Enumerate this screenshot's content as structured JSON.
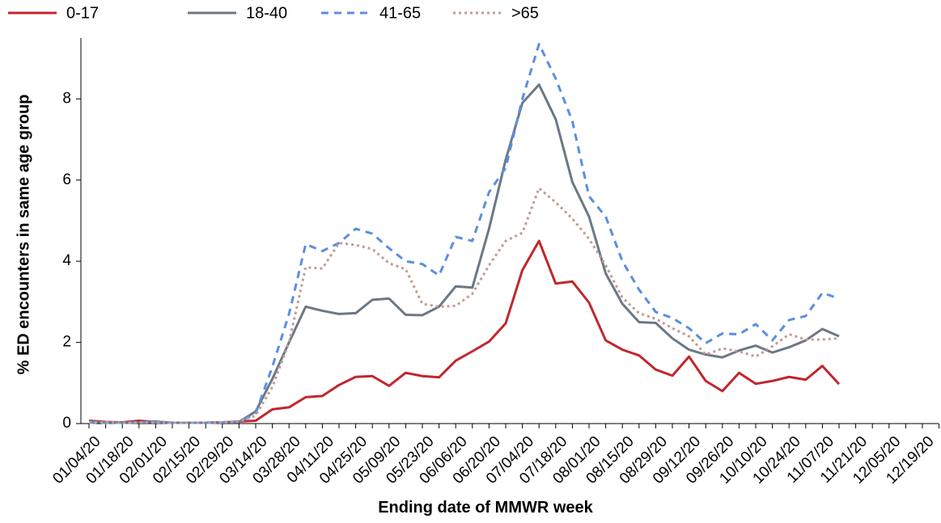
{
  "chart_data": {
    "type": "line",
    "y_label": "% ED encounters in same age group",
    "x_label": "Ending date of MMWR week",
    "categories": [
      "01/04/20",
      null,
      "01/18/20",
      null,
      "02/01/20",
      null,
      "02/15/20",
      null,
      "02/29/20",
      null,
      "03/14/20",
      null,
      "03/28/20",
      null,
      "04/11/20",
      null,
      "04/25/20",
      null,
      "05/09/20",
      null,
      "05/23/20",
      null,
      "06/06/20",
      null,
      "06/20/20",
      null,
      "07/04/20",
      null,
      "07/18/20",
      null,
      "08/01/20",
      null,
      "08/15/20",
      null,
      "08/29/20",
      null,
      "09/12/20",
      null,
      "09/26/20",
      null,
      "10/10/20",
      null,
      "10/24/20",
      null,
      "11/07/20",
      null,
      "11/21/20",
      null,
      "12/05/20",
      null,
      "12/19/20",
      null
    ],
    "series": [
      {
        "name": "0-17",
        "color": "#c0272d",
        "style": "solid",
        "values": [
          0.07,
          0.04,
          0.03,
          0.07,
          0.04,
          0.02,
          0.02,
          0.02,
          0.03,
          0.05,
          0.07,
          0.35,
          0.4,
          0.65,
          0.68,
          0.95,
          1.15,
          1.17,
          0.93,
          1.25,
          1.17,
          1.14,
          1.55,
          1.78,
          2.02,
          2.47,
          3.78,
          4.5,
          3.45,
          3.5,
          2.98,
          2.05,
          1.82,
          1.68,
          1.33,
          1.18,
          1.65,
          1.05,
          0.8,
          1.25,
          0.98,
          1.05,
          1.15,
          1.08,
          1.42,
          0.97,
          null,
          null,
          null,
          null,
          null,
          null
        ]
      },
      {
        "name": "18-40",
        "color": "#6b7886",
        "style": "solid",
        "values": [
          0.05,
          0.03,
          0.02,
          0.03,
          0.05,
          0.02,
          0.02,
          0.02,
          0.03,
          0.04,
          0.3,
          1.1,
          2.0,
          2.88,
          2.78,
          2.7,
          2.72,
          3.05,
          3.08,
          2.68,
          2.67,
          2.88,
          3.38,
          3.35,
          4.8,
          6.5,
          7.9,
          8.35,
          7.5,
          5.95,
          5.1,
          3.7,
          2.95,
          2.5,
          2.48,
          2.1,
          1.82,
          1.7,
          1.63,
          1.8,
          1.92,
          1.75,
          1.88,
          2.05,
          2.33,
          2.15,
          null,
          null,
          null,
          null,
          null,
          null
        ]
      },
      {
        "name": "41-65",
        "color": "#5b8fe0",
        "style": "dashed",
        "values": [
          0.02,
          0.02,
          0.02,
          0.03,
          0.03,
          0.02,
          0.02,
          0.02,
          0.03,
          0.04,
          0.25,
          1.4,
          2.7,
          4.42,
          4.25,
          4.45,
          4.8,
          4.68,
          4.32,
          4.0,
          3.93,
          3.65,
          4.6,
          4.5,
          5.7,
          6.3,
          8.0,
          9.35,
          8.5,
          7.45,
          5.6,
          5.1,
          4.0,
          3.3,
          2.75,
          2.6,
          2.35,
          1.98,
          2.22,
          2.2,
          2.45,
          2.05,
          2.55,
          2.65,
          3.22,
          3.08,
          null,
          null,
          null,
          null,
          null,
          null
        ]
      },
      {
        "name": ">65",
        "color": "#c49a94",
        "style": "dotted",
        "values": [
          0.03,
          0.03,
          0.02,
          0.03,
          0.03,
          0.02,
          0.02,
          0.02,
          0.03,
          0.04,
          0.2,
          0.9,
          2.0,
          3.85,
          3.82,
          4.45,
          4.4,
          4.3,
          3.95,
          3.8,
          2.95,
          2.88,
          2.9,
          3.2,
          3.9,
          4.5,
          4.7,
          5.8,
          5.45,
          5.05,
          4.55,
          3.9,
          3.1,
          2.72,
          2.58,
          2.35,
          2.15,
          1.7,
          1.85,
          1.78,
          1.65,
          1.9,
          2.2,
          2.07,
          2.07,
          2.1,
          null,
          null,
          null,
          null,
          null,
          null
        ]
      }
    ],
    "ylim": [
      0,
      9.5
    ],
    "yticks": [
      0,
      2,
      4,
      6,
      8
    ],
    "grid": false
  }
}
